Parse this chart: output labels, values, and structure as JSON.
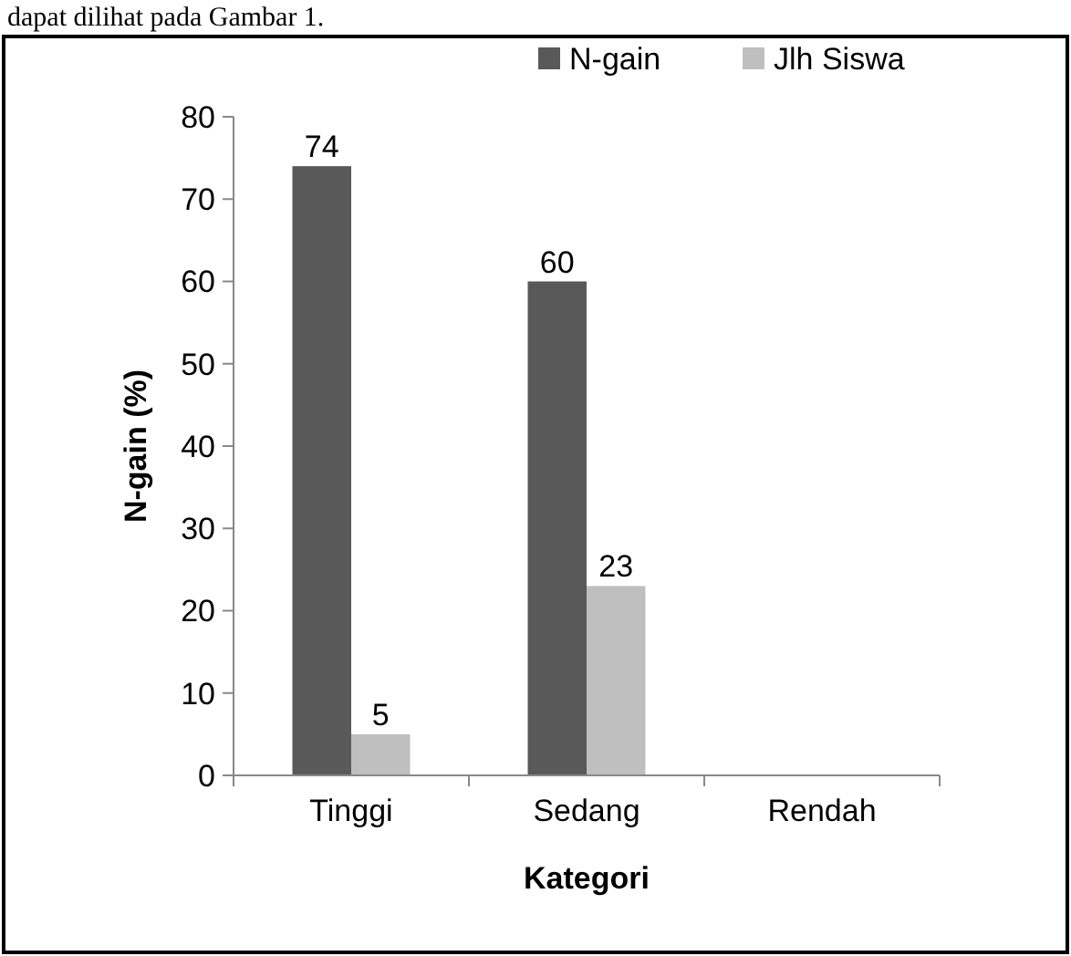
{
  "chart_data": {
    "type": "bar",
    "xlabel": "Kategori",
    "ylabel": "N-gain (%)",
    "annotations": [
      "dapat dilihat pada Gambar 1."
    ],
    "categories": [
      "Tinggi",
      "Sedang",
      "Rendah"
    ],
    "series": [
      {
        "name": "N-gain",
        "color": "#595959",
        "values": [
          74,
          60,
          null
        ]
      },
      {
        "name": "Jlh Siswa",
        "color": "#bfbfbf",
        "values": [
          5,
          23,
          null
        ]
      }
    ],
    "ylim": [
      0,
      80
    ],
    "yticks": [
      0,
      10,
      20,
      30,
      40,
      50,
      60,
      70,
      80
    ],
    "data_labels": true,
    "grid": false,
    "legend": "top right"
  }
}
